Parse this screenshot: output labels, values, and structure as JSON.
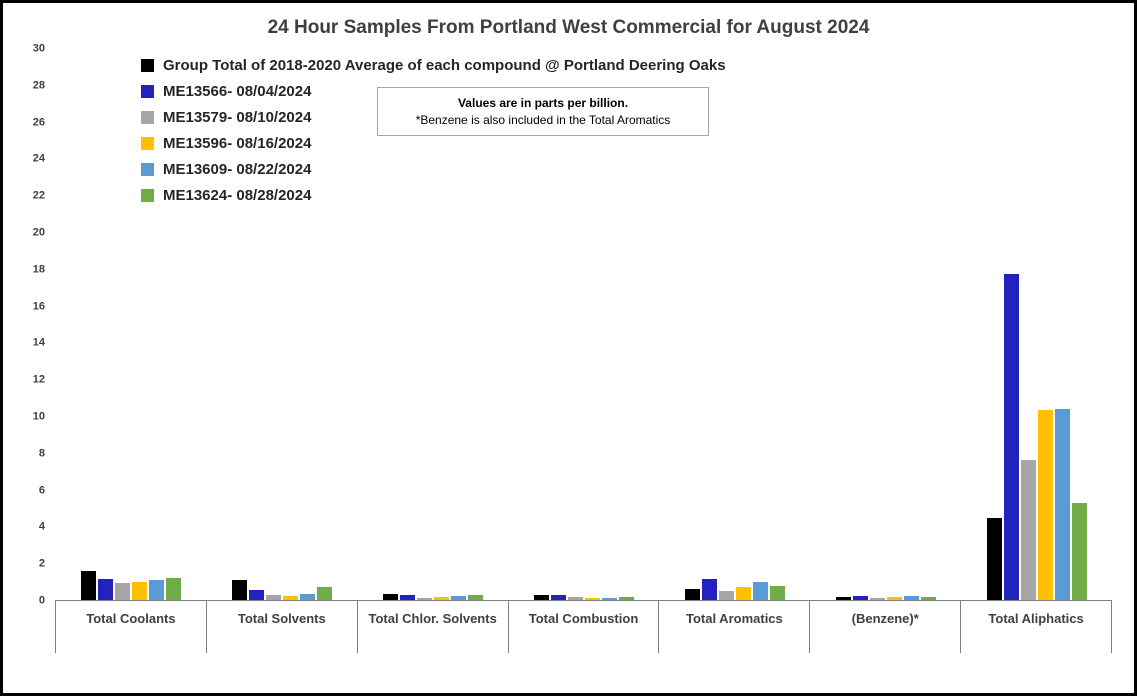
{
  "chart_data": {
    "type": "bar",
    "title": "24 Hour Samples From Portland West Commercial for August 2024",
    "categories": [
      "Total Coolants",
      "Total Solvents",
      "Total Chlor. Solvents",
      "Total Combustion",
      "Total Aromatics",
      "(Benzene)*",
      "Total Aliphatics"
    ],
    "series": [
      {
        "name": "Group Total of 2018-2020 Average of each compound @ Portland Deering Oaks",
        "color": "#000000",
        "values": [
          1.6,
          1.1,
          0.35,
          0.25,
          0.6,
          0.15,
          4.45
        ]
      },
      {
        "name": "ME13566- 08/04/2024",
        "color": "#2222BE",
        "values": [
          1.15,
          0.55,
          0.25,
          0.3,
          1.15,
          0.2,
          17.75
        ]
      },
      {
        "name": "ME13579- 08/10/2024",
        "color": "#A6A6A6",
        "values": [
          0.9,
          0.3,
          0.1,
          0.15,
          0.5,
          0.1,
          7.65
        ]
      },
      {
        "name": "ME13596- 08/16/2024",
        "color": "#FFC000",
        "values": [
          1.0,
          0.2,
          0.15,
          0.1,
          0.7,
          0.15,
          10.35
        ]
      },
      {
        "name": "ME13609- 08/22/2024",
        "color": "#5B9BD5",
        "values": [
          1.1,
          0.35,
          0.2,
          0.1,
          1.0,
          0.2,
          10.4
        ]
      },
      {
        "name": "ME13624- 08/28/2024",
        "color": "#70AD47",
        "values": [
          1.2,
          0.7,
          0.25,
          0.15,
          0.75,
          0.15,
          5.3
        ]
      }
    ],
    "ylim": [
      0,
      30
    ],
    "ytick_step": 2,
    "grid": false,
    "legend_position": "top-left",
    "annotation": [
      "Values are in parts per billion.",
      "*Benzene is also included in the Total Aromatics"
    ]
  }
}
